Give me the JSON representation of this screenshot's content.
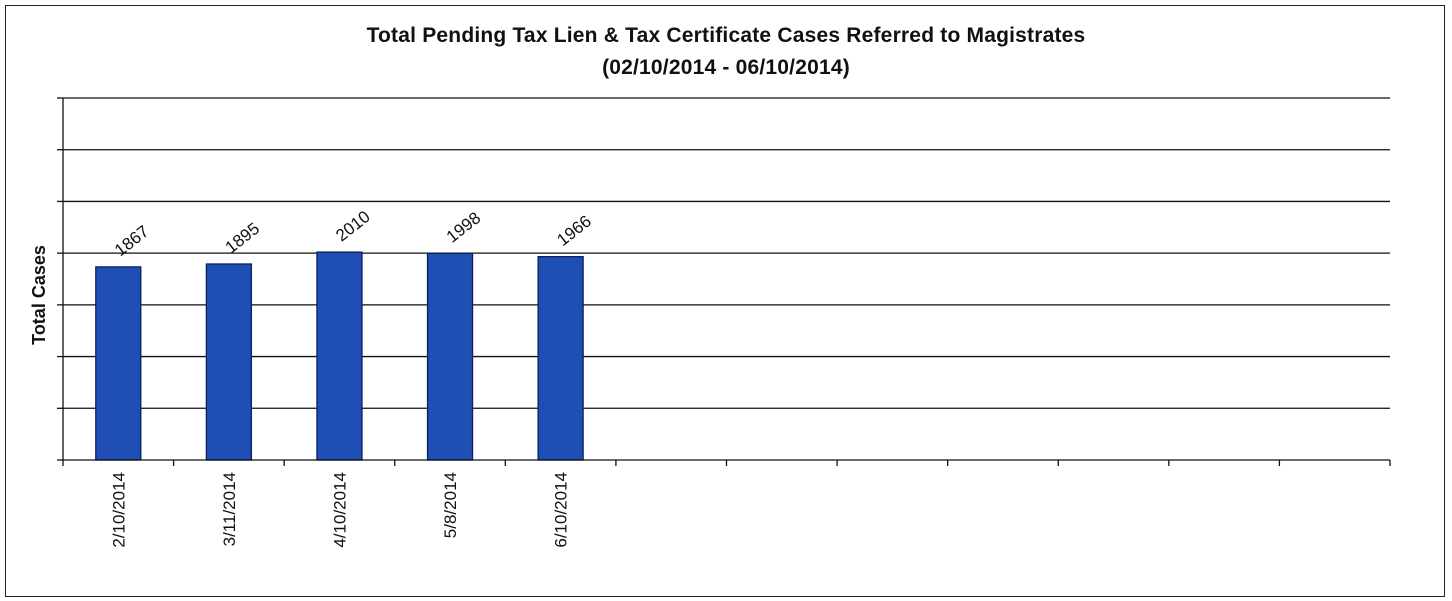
{
  "chart_data": {
    "type": "bar",
    "title": "Total Pending Tax Lien & Tax Certificate Cases Referred to Magistrates",
    "subtitle": "(02/10/2014  - 06/10/2014)",
    "xlabel": "",
    "ylabel": "Total Cases",
    "categories": [
      "2/10/2014",
      "3/11/2014",
      "4/10/2014",
      "5/8/2014",
      "6/10/2014"
    ],
    "values": [
      1867,
      1895,
      2010,
      1998,
      1966
    ],
    "x_slots": 12,
    "ylim": [
      0,
      3500
    ],
    "y_gridline_step": 500,
    "y_tick_labels_shown": false,
    "grid": true,
    "legend": "none",
    "colors": {
      "bar_fill": "#1F4FB5",
      "bar_edge": "#0A1F5C",
      "grid": "#111111"
    }
  }
}
